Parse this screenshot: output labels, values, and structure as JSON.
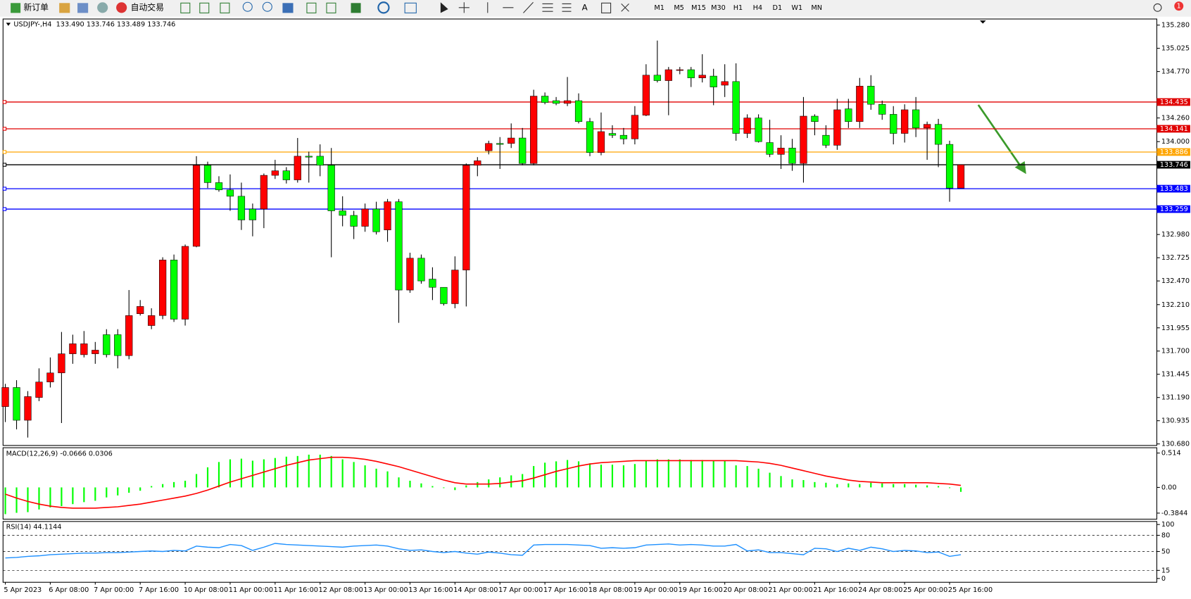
{
  "toolbar": {
    "new_order": "新订单",
    "auto_trading": "自动交易",
    "timeframes": [
      "M1",
      "M5",
      "M15",
      "M30",
      "H1",
      "H4",
      "D1",
      "W1",
      "MN"
    ],
    "badge": "1"
  },
  "chart_data": [
    {
      "type": "candlestick",
      "title": "USDJPY-,H4  133.490 133.746 133.489 133.746",
      "up_color": "#ff0000",
      "down_color": "#00ff00",
      "categories": [
        "5 Apr 2023",
        null,
        null,
        null,
        "6 Apr 08:00",
        null,
        null,
        null,
        "7 Apr 00:00",
        null,
        null,
        null,
        "7 Apr 16:00",
        null,
        null,
        null,
        "10 Apr 08:00",
        null,
        null,
        null,
        "11 Apr 00:00",
        null,
        null,
        null,
        "11 Apr 16:00",
        null,
        null,
        null,
        "12 Apr 08:00",
        null,
        null,
        null,
        "13 Apr 00:00",
        null,
        null,
        null,
        "13 Apr 16:00",
        null,
        null,
        null,
        "14 Apr 08:00",
        null,
        null,
        null,
        "17 Apr 00:00",
        null,
        null,
        null,
        "17 Apr 16:00",
        null,
        null,
        null,
        "18 Apr 08:00",
        null,
        null,
        null,
        "19 Apr 00:00",
        null,
        null,
        null,
        "19 Apr 16:00",
        null,
        null,
        null,
        "20 Apr 08:00",
        null,
        null,
        null,
        "21 Apr 00:00",
        null,
        null,
        null,
        "21 Apr 16:00",
        null,
        null,
        null,
        "24 Apr 08:00",
        null,
        null,
        null,
        "25 Apr 00:00",
        null,
        null,
        null,
        "25 Apr 16:00",
        null
      ],
      "open": [
        131.09,
        131.3,
        130.94,
        131.19,
        131.36,
        131.46,
        131.67,
        131.66,
        131.67,
        131.88,
        131.88,
        131.65,
        132.11,
        131.98,
        132.09,
        132.7,
        132.05,
        132.85,
        133.74,
        133.55,
        133.47,
        133.4,
        133.26,
        133.26,
        133.63,
        133.68,
        133.58,
        133.84,
        133.84,
        133.74,
        133.24,
        133.19,
        133.07,
        133.26,
        133.03,
        133.34,
        132.37,
        132.72,
        132.49,
        132.4,
        132.22,
        132.59,
        133.74,
        133.9,
        133.98,
        133.98,
        134.04,
        133.76,
        134.5,
        134.45,
        134.42,
        134.45,
        134.22,
        133.88,
        134.09,
        134.07,
        134.03,
        134.29,
        134.73,
        134.67,
        134.79,
        134.79,
        134.7,
        134.72,
        134.62,
        134.66,
        134.09,
        134.26,
        133.99,
        133.86,
        133.93,
        133.76,
        134.28,
        134.07,
        133.96,
        134.36,
        134.22,
        134.61,
        134.41,
        134.3,
        134.09,
        134.35,
        134.15,
        134.19,
        133.97,
        133.49
      ],
      "high": [
        131.34,
        131.38,
        131.26,
        131.51,
        131.63,
        131.91,
        131.88,
        131.92,
        131.8,
        131.94,
        131.94,
        132.37,
        132.26,
        132.17,
        132.73,
        132.76,
        132.87,
        133.84,
        133.78,
        133.62,
        133.64,
        133.55,
        133.32,
        133.65,
        133.8,
        133.72,
        134.04,
        133.89,
        133.97,
        133.93,
        133.4,
        133.24,
        133.32,
        133.34,
        133.37,
        133.37,
        132.78,
        132.76,
        132.62,
        132.4,
        132.74,
        133.76,
        133.83,
        134.01,
        134.05,
        134.2,
        134.15,
        134.57,
        134.54,
        134.49,
        134.71,
        134.53,
        134.26,
        134.32,
        134.18,
        134.15,
        134.39,
        134.85,
        135.11,
        134.82,
        134.82,
        134.82,
        134.96,
        134.8,
        134.85,
        134.86,
        134.3,
        134.3,
        134.24,
        134.07,
        134.03,
        134.49,
        134.3,
        134.18,
        134.47,
        134.47,
        134.7,
        134.73,
        134.45,
        134.39,
        134.41,
        134.49,
        134.22,
        134.25,
        134.01,
        133.746
      ],
      "low": [
        130.92,
        130.84,
        130.75,
        131.15,
        131.3,
        130.91,
        131.56,
        131.63,
        131.56,
        131.63,
        131.51,
        131.61,
        132.09,
        131.94,
        132.05,
        132.02,
        131.98,
        132.84,
        133.49,
        133.45,
        133.24,
        133.03,
        132.96,
        133.05,
        133.59,
        133.54,
        133.55,
        133.55,
        133.62,
        132.73,
        133.07,
        132.93,
        133.01,
        132.98,
        132.9,
        132.01,
        132.34,
        132.44,
        132.26,
        132.2,
        132.17,
        132.19,
        133.62,
        133.86,
        133.7,
        133.93,
        133.74,
        133.74,
        134.41,
        134.4,
        134.39,
        134.2,
        133.84,
        133.85,
        134.04,
        133.97,
        133.97,
        134.28,
        134.65,
        134.29,
        134.74,
        134.6,
        134.65,
        134.4,
        134.49,
        134.01,
        134.04,
        133.99,
        133.83,
        133.7,
        133.68,
        133.55,
        134.07,
        133.93,
        133.91,
        134.15,
        134.15,
        134.35,
        134.24,
        133.97,
        133.99,
        134.05,
        133.8,
        133.72,
        133.34,
        133.489
      ],
      "close": [
        131.3,
        130.94,
        131.2,
        131.36,
        131.46,
        131.67,
        131.78,
        131.78,
        131.71,
        131.66,
        131.65,
        132.09,
        132.19,
        132.09,
        132.7,
        132.05,
        132.85,
        133.74,
        133.55,
        133.47,
        133.4,
        133.14,
        133.14,
        133.63,
        133.68,
        133.58,
        133.84,
        133.83,
        133.74,
        133.24,
        133.19,
        133.07,
        133.26,
        133.01,
        133.34,
        132.37,
        132.72,
        132.47,
        132.4,
        132.22,
        132.59,
        133.74,
        133.79,
        133.98,
        133.97,
        134.04,
        133.76,
        134.5,
        134.43,
        134.42,
        134.45,
        134.22,
        133.88,
        134.11,
        134.07,
        134.03,
        134.29,
        134.73,
        134.67,
        134.79,
        134.79,
        134.7,
        134.73,
        134.6,
        134.66,
        134.09,
        134.26,
        134.0,
        133.86,
        133.93,
        133.76,
        134.28,
        134.22,
        133.96,
        134.35,
        134.22,
        134.61,
        134.41,
        134.3,
        134.09,
        134.35,
        134.15,
        134.19,
        133.97,
        133.49,
        133.746
      ],
      "ylim": [
        130.68,
        135.28
      ],
      "yticks": [
        {
          "value": 135.28,
          "label": "135.280"
        },
        {
          "value": 135.025,
          "label": "135.025"
        },
        {
          "value": 134.77,
          "label": "134.770"
        },
        {
          "value": 134.26,
          "label": "134.260"
        },
        {
          "value": 134,
          "label": "134.000"
        },
        {
          "value": 132.98,
          "label": "132.980"
        },
        {
          "value": 132.725,
          "label": "132.725"
        },
        {
          "value": 132.47,
          "label": "132.470"
        },
        {
          "value": 132.21,
          "label": "132.210"
        },
        {
          "value": 131.955,
          "label": "131.955"
        },
        {
          "value": 131.7,
          "label": "131.700"
        },
        {
          "value": 131.445,
          "label": "131.445"
        },
        {
          "value": 131.19,
          "label": "131.190"
        },
        {
          "value": 130.935,
          "label": "130.935"
        },
        {
          "value": 130.68,
          "label": "130.680"
        }
      ],
      "levels": [
        {
          "value": 134.435,
          "color": "#e00000"
        },
        {
          "value": 134.141,
          "color": "#e00000"
        },
        {
          "value": 133.886,
          "color": "#ffa500"
        },
        {
          "value": 133.746,
          "color": "#000000"
        },
        {
          "value": 133.483,
          "color": "#0000ff"
        },
        {
          "value": 133.259,
          "color": "#0000ff"
        }
      ]
    },
    {
      "type": "macd",
      "title": "MACD(12,26,9) -0.0666 0.0306",
      "histogram_color": "#00ff00",
      "signal_color": "#ff0000",
      "histogram": [
        -0.4,
        -0.38,
        -0.37,
        -0.33,
        -0.3,
        -0.28,
        -0.25,
        -0.22,
        -0.2,
        -0.15,
        -0.12,
        -0.08,
        -0.05,
        0.02,
        0.05,
        0.08,
        0.1,
        0.2,
        0.3,
        0.38,
        0.42,
        0.43,
        0.4,
        0.42,
        0.44,
        0.46,
        0.47,
        0.49,
        0.49,
        0.47,
        0.42,
        0.38,
        0.33,
        0.28,
        0.24,
        0.15,
        0.1,
        0.06,
        0.02,
        -0.01,
        -0.04,
        0.03,
        0.08,
        0.12,
        0.15,
        0.18,
        0.2,
        0.32,
        0.37,
        0.39,
        0.41,
        0.39,
        0.36,
        0.34,
        0.34,
        0.33,
        0.35,
        0.4,
        0.42,
        0.42,
        0.42,
        0.41,
        0.41,
        0.4,
        0.4,
        0.33,
        0.32,
        0.28,
        0.22,
        0.17,
        0.12,
        0.11,
        0.08,
        0.07,
        0.05,
        0.06,
        0.05,
        0.07,
        0.06,
        0.05,
        0.05,
        0.04,
        0.03,
        0.02,
        -0.01,
        -0.0666
      ],
      "signal": [
        -0.1,
        -0.16,
        -0.21,
        -0.25,
        -0.28,
        -0.3,
        -0.31,
        -0.31,
        -0.31,
        -0.3,
        -0.29,
        -0.27,
        -0.25,
        -0.22,
        -0.19,
        -0.16,
        -0.13,
        -0.09,
        -0.04,
        0.02,
        0.08,
        0.13,
        0.18,
        0.23,
        0.28,
        0.33,
        0.37,
        0.41,
        0.43,
        0.45,
        0.45,
        0.44,
        0.42,
        0.39,
        0.35,
        0.31,
        0.26,
        0.21,
        0.16,
        0.11,
        0.07,
        0.05,
        0.05,
        0.05,
        0.06,
        0.08,
        0.1,
        0.14,
        0.19,
        0.24,
        0.28,
        0.32,
        0.35,
        0.37,
        0.38,
        0.39,
        0.4,
        0.4,
        0.4,
        0.4,
        0.4,
        0.4,
        0.4,
        0.4,
        0.4,
        0.4,
        0.39,
        0.38,
        0.36,
        0.33,
        0.29,
        0.25,
        0.21,
        0.17,
        0.14,
        0.11,
        0.09,
        0.08,
        0.07,
        0.07,
        0.07,
        0.07,
        0.07,
        0.06,
        0.05,
        0.0306
      ],
      "ylim": [
        -0.3844,
        0.514
      ],
      "yticks": [
        0.514,
        {
          "value": 0,
          "label": "0.00"
        },
        -0.3844
      ]
    },
    {
      "type": "rsi",
      "title": "RSI(14) 44.1144",
      "color": "#1e90ff",
      "values": [
        38,
        39,
        41,
        42,
        44,
        45,
        46,
        47,
        47,
        48,
        48,
        49,
        50,
        51,
        50,
        52,
        51,
        60,
        58,
        57,
        63,
        61,
        52,
        58,
        65,
        63,
        62,
        61,
        60,
        59,
        58,
        60,
        61,
        62,
        60,
        55,
        52,
        53,
        50,
        48,
        50,
        47,
        45,
        49,
        47,
        44,
        43,
        62,
        63,
        63,
        63,
        62,
        61,
        56,
        57,
        56,
        57,
        62,
        63,
        64,
        62,
        63,
        62,
        60,
        60,
        63,
        51,
        53,
        48,
        48,
        46,
        44,
        56,
        55,
        50,
        56,
        52,
        58,
        55,
        50,
        52,
        51,
        48,
        49,
        41,
        44.1144
      ],
      "ylim": [
        0,
        100
      ],
      "yticks": [
        0,
        15,
        50,
        80,
        100
      ]
    }
  ]
}
